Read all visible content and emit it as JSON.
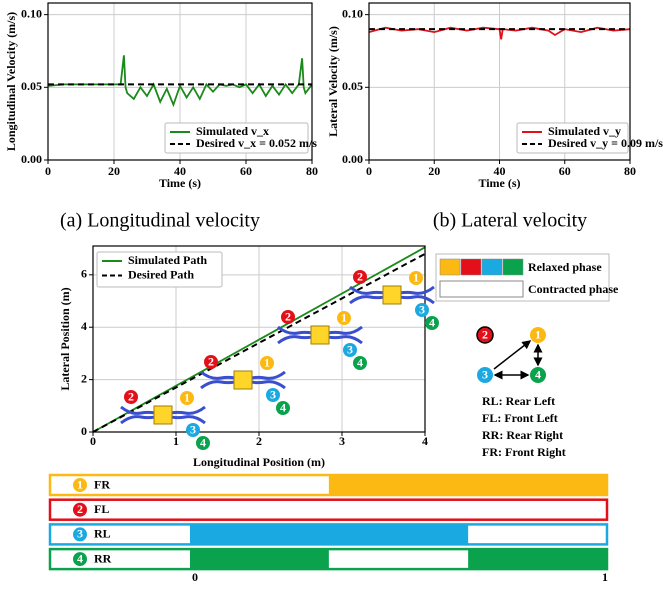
{
  "chart_data": [
    {
      "type": "line",
      "caption": "(a) Longitudinal velocity",
      "xlabel": "Time (s)",
      "ylabel": "Longitudinal Velocity (m/s)",
      "xlim": [
        0,
        80
      ],
      "xticks": [
        0,
        20,
        40,
        60,
        80
      ],
      "ylim": [
        0,
        0.108
      ],
      "yticks": [
        {
          "value": 0,
          "label": "0.00"
        },
        {
          "value": 0.05,
          "label": "0.05"
        },
        {
          "value": 0.1,
          "label": "0.10"
        }
      ],
      "grid": true,
      "series": [
        {
          "name": "Simulated v_x",
          "color": "#1a8a1a",
          "style": "solid",
          "x": [
            0,
            5,
            10,
            15,
            20,
            22,
            23,
            23.5,
            24,
            26,
            28,
            30,
            32,
            34,
            36,
            38,
            40,
            42,
            44,
            46,
            48,
            50,
            52,
            54,
            56,
            58,
            60,
            62,
            64,
            66,
            68,
            70,
            72,
            74,
            76,
            77,
            77.5,
            78,
            80
          ],
          "values": [
            0.051,
            0.052,
            0.052,
            0.052,
            0.052,
            0.052,
            0.072,
            0.05,
            0.046,
            0.042,
            0.05,
            0.044,
            0.052,
            0.04,
            0.049,
            0.038,
            0.051,
            0.043,
            0.05,
            0.042,
            0.052,
            0.047,
            0.052,
            0.051,
            0.052,
            0.05,
            0.052,
            0.046,
            0.052,
            0.044,
            0.051,
            0.045,
            0.052,
            0.046,
            0.052,
            0.07,
            0.05,
            0.046,
            0.052
          ]
        },
        {
          "name": "Desired v_x = 0.052 m/s",
          "color": "#000000",
          "style": "dashed",
          "x": [
            0,
            80
          ],
          "values": [
            0.052,
            0.052
          ]
        }
      ]
    },
    {
      "type": "line",
      "caption": "(b) Lateral velocity",
      "xlabel": "Time (s)",
      "ylabel": "Lateral Velocity (m/s)",
      "xlim": [
        0,
        80
      ],
      "xticks": [
        0,
        20,
        40,
        60,
        80
      ],
      "ylim": [
        0,
        0.108
      ],
      "yticks": [
        {
          "value": 0,
          "label": "0.00"
        },
        {
          "value": 0.05,
          "label": "0.05"
        },
        {
          "value": 0.1,
          "label": "0.10"
        }
      ],
      "grid": true,
      "series": [
        {
          "name": "Simulated v_y",
          "color": "#e3101a",
          "style": "solid",
          "x": [
            0,
            5,
            10,
            15,
            20,
            25,
            30,
            35,
            40,
            40.5,
            41,
            45,
            50,
            55,
            57,
            60,
            65,
            70,
            75,
            80
          ],
          "values": [
            0.088,
            0.091,
            0.089,
            0.09,
            0.088,
            0.091,
            0.089,
            0.091,
            0.09,
            0.083,
            0.09,
            0.089,
            0.091,
            0.089,
            0.086,
            0.09,
            0.088,
            0.091,
            0.089,
            0.09
          ]
        },
        {
          "name": "Desired v_y = 0.09 m/s",
          "color": "#000000",
          "style": "dashed",
          "x": [
            0,
            80
          ],
          "values": [
            0.09,
            0.09
          ]
        }
      ]
    },
    {
      "type": "line",
      "xlabel": "Longitudinal Position (m)",
      "ylabel": "Lateral Position (m)",
      "xlim": [
        0,
        4
      ],
      "xticks": [
        0,
        1,
        2,
        3,
        4
      ],
      "ylim": [
        0,
        7.1
      ],
      "yticks": [
        0,
        2,
        4,
        6
      ],
      "grid": true,
      "series": [
        {
          "name": "Simulated Path",
          "color": "#1a8a1a",
          "style": "solid",
          "x": [
            0,
            4
          ],
          "values": [
            0,
            7.05
          ]
        },
        {
          "name": "Desired Path",
          "color": "#000000",
          "style": "dashed",
          "x": [
            0,
            4
          ],
          "values": [
            0,
            6.8
          ]
        }
      ]
    },
    {
      "type": "gait",
      "xlim": [
        0,
        1
      ],
      "xticks": [
        0,
        1
      ],
      "rows": [
        {
          "id": "1",
          "name": "FR",
          "color": "#fdb913",
          "relaxed": [
            [
              0.333,
              1
            ]
          ]
        },
        {
          "id": "2",
          "name": "FL",
          "color": "#e3101a",
          "relaxed": []
        },
        {
          "id": "3",
          "name": "RL",
          "color": "#1ba9e1",
          "relaxed": [
            [
              0,
              0.667
            ]
          ]
        },
        {
          "id": "4",
          "name": "RR",
          "color": "#0aa24d",
          "relaxed": [
            [
              0,
              0.333
            ],
            [
              0.667,
              1
            ]
          ]
        }
      ]
    }
  ],
  "leg_ids": [
    "1",
    "2",
    "3",
    "4"
  ],
  "phase_legend": {
    "relaxed": "Relaxed phase",
    "contracted": "Contracted phase"
  },
  "abbreviations": [
    "RL: Rear Left",
    "FL: Front Left",
    "RR: Rear Right",
    "FR: Front Right"
  ]
}
